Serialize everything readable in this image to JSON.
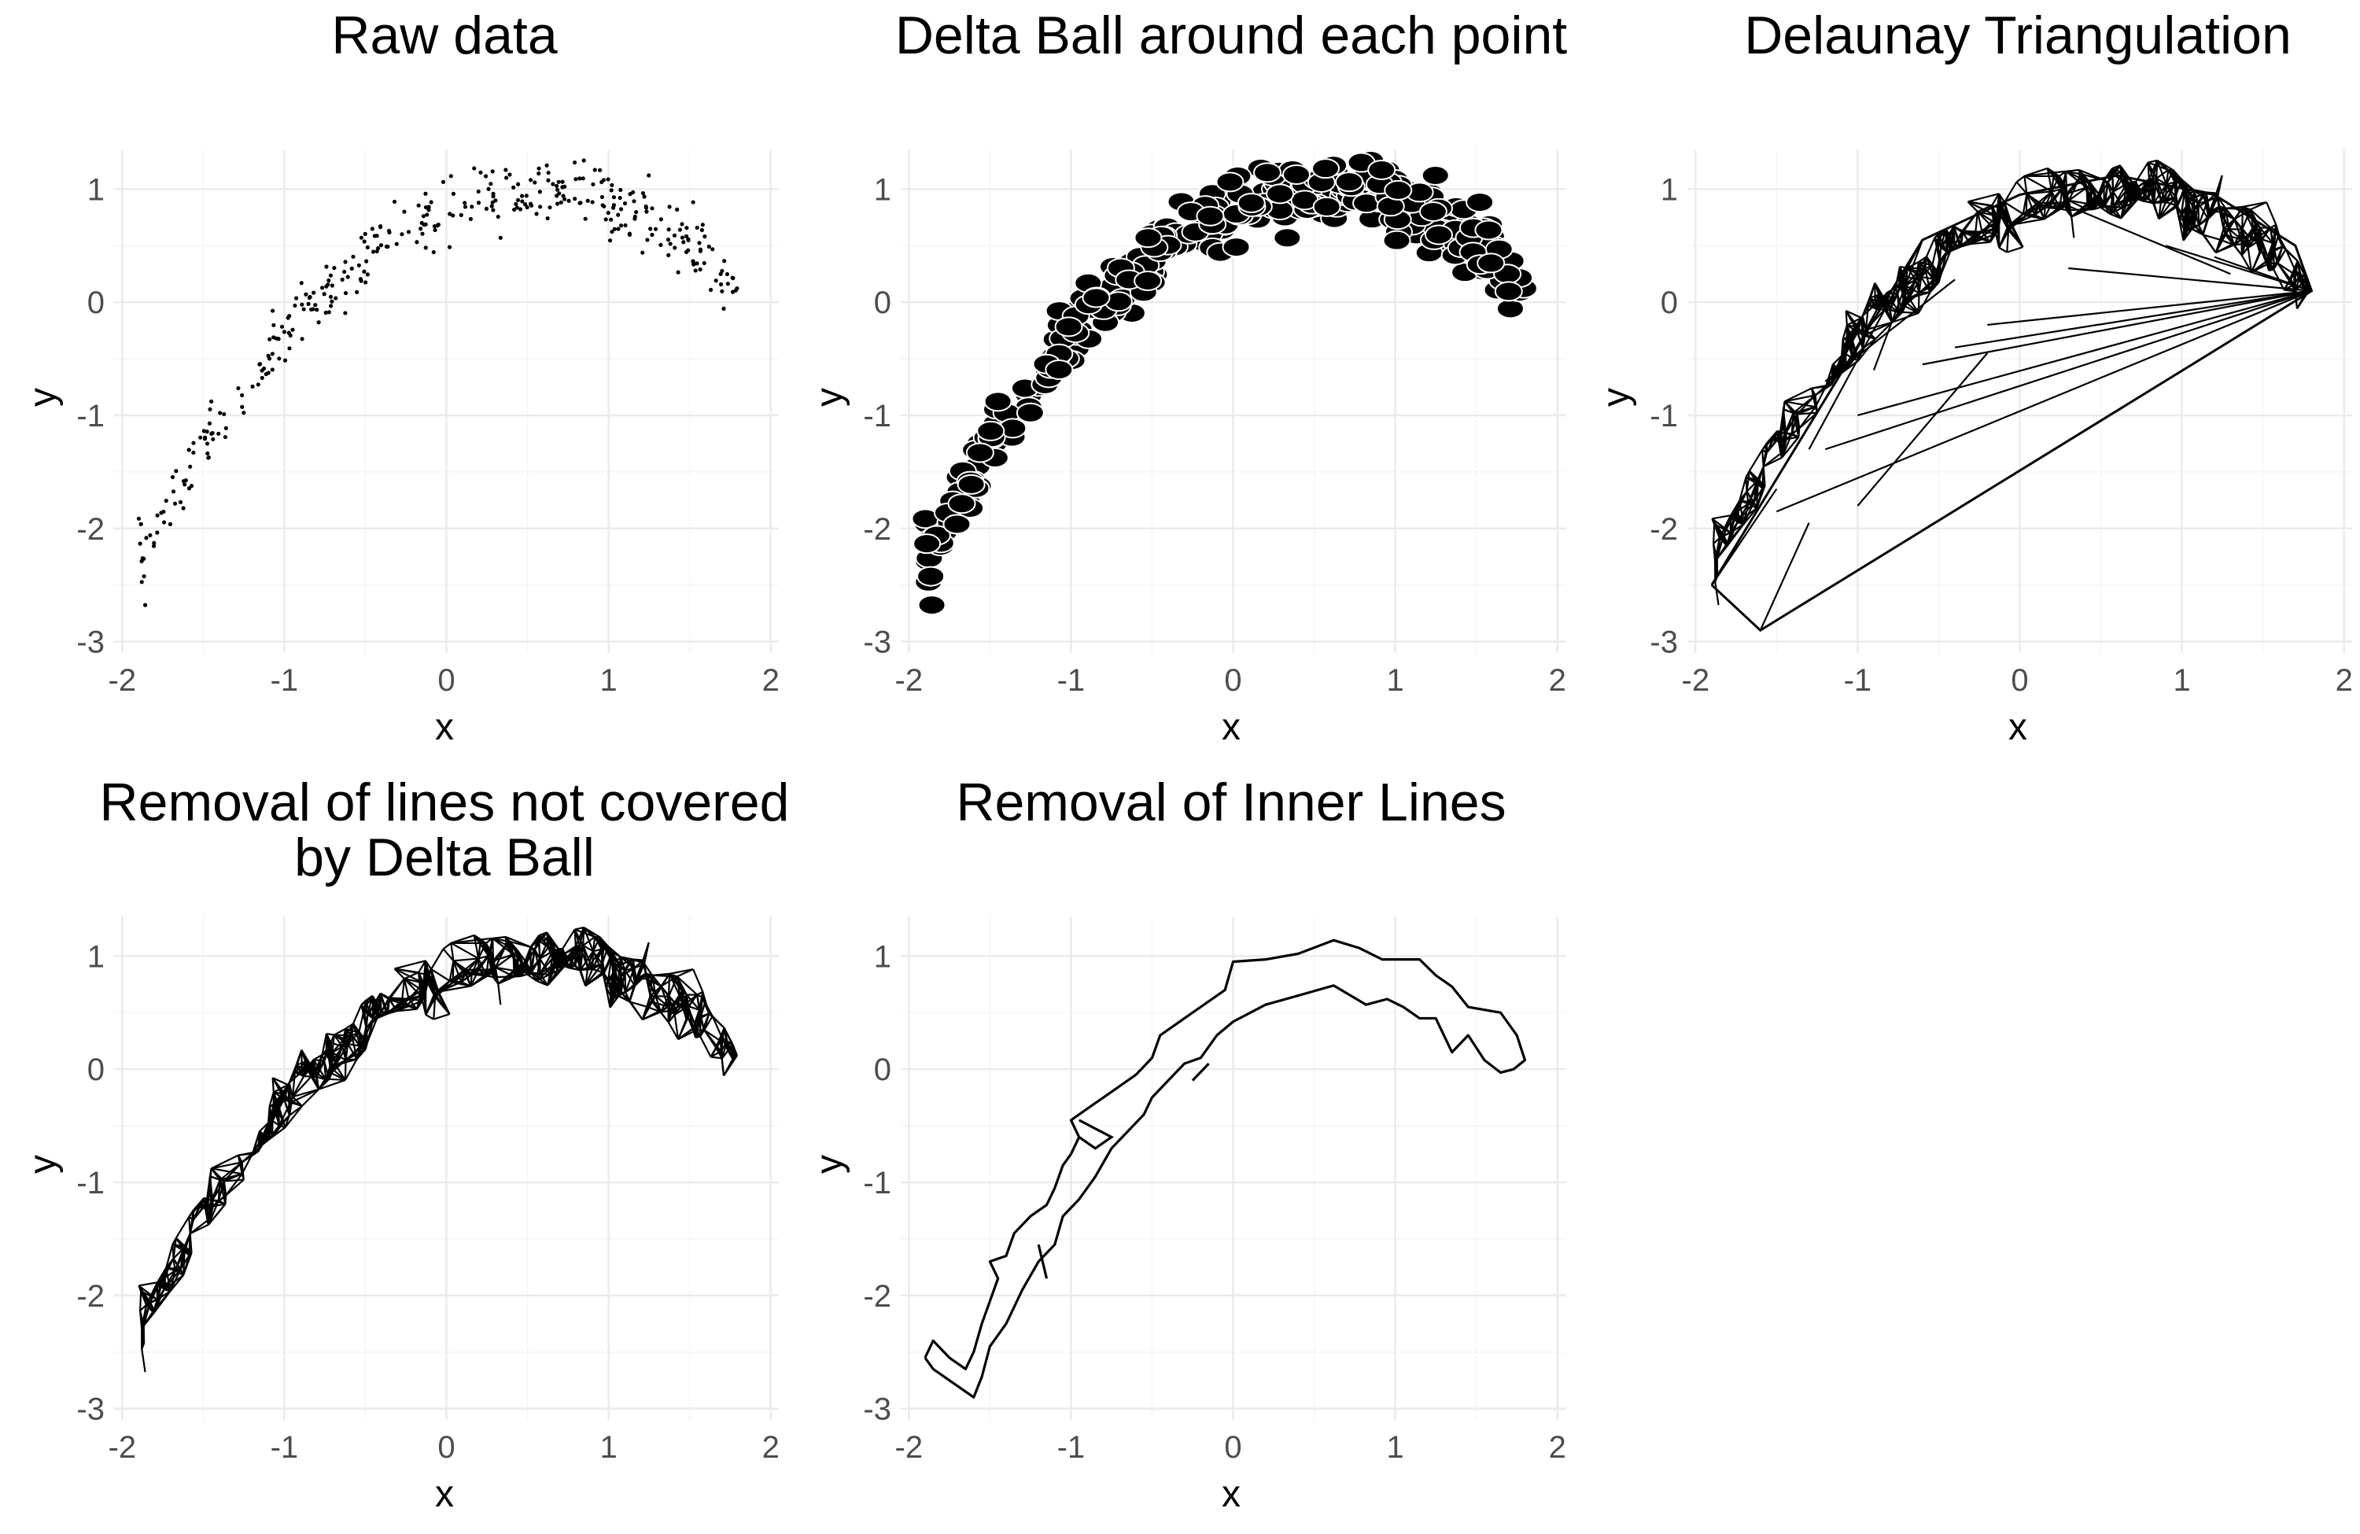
{
  "chart_data": [
    {
      "type": "scatter",
      "title": "Raw data",
      "xlabel": "x",
      "ylabel": "y",
      "xlim": [
        -2,
        2
      ],
      "ylim": [
        -3,
        1
      ],
      "x_ticks": [
        "-2",
        "-1",
        "0",
        "1",
        "2"
      ],
      "y_ticks": [
        "-3",
        "-2",
        "-1",
        "0",
        "1"
      ],
      "grid": true,
      "marker": "small dot"
    },
    {
      "type": "scatter",
      "title": "Delta Ball around each point",
      "xlabel": "x",
      "ylabel": "y",
      "xlim": [
        -2,
        2
      ],
      "ylim": [
        -3,
        1
      ],
      "x_ticks": [
        "-2",
        "-1",
        "0",
        "1",
        "2"
      ],
      "y_ticks": [
        "-3",
        "-2",
        "-1",
        "0",
        "1"
      ],
      "grid": true,
      "marker": "filled ellipse with white outline"
    },
    {
      "type": "line",
      "title": "Delaunay Triangulation",
      "xlabel": "x",
      "ylabel": "y",
      "xlim": [
        -2,
        2
      ],
      "ylim": [
        -3,
        1
      ],
      "x_ticks": [
        "-2",
        "-1",
        "0",
        "1",
        "2"
      ],
      "y_ticks": [
        "-3",
        "-2",
        "-1",
        "0",
        "1"
      ],
      "grid": true
    },
    {
      "type": "line",
      "title": "Removal of lines not covered by Delta Ball",
      "title_lines": [
        "Removal of lines not covered",
        "by Delta Ball"
      ],
      "xlabel": "x",
      "ylabel": "y",
      "xlim": [
        -2,
        2
      ],
      "ylim": [
        -3,
        1
      ],
      "x_ticks": [
        "-2",
        "-1",
        "0",
        "1",
        "2"
      ],
      "y_ticks": [
        "-3",
        "-2",
        "-1",
        "0",
        "1"
      ],
      "grid": true
    },
    {
      "type": "line",
      "title": "Removal of Inner Lines",
      "xlabel": "x",
      "ylabel": "y",
      "xlim": [
        -2,
        2
      ],
      "ylim": [
        -3,
        1
      ],
      "x_ticks": [
        "-2",
        "-1",
        "0",
        "1",
        "2"
      ],
      "y_ticks": [
        "-3",
        "-2",
        "-1",
        "0",
        "1"
      ],
      "grid": true,
      "outer_boundary": [
        [
          -1.9,
          -2.55
        ],
        [
          -1.85,
          -2.4
        ],
        [
          -1.75,
          -2.55
        ],
        [
          -1.65,
          -2.65
        ],
        [
          -1.6,
          -2.5
        ],
        [
          -1.55,
          -2.25
        ],
        [
          -1.5,
          -2.05
        ],
        [
          -1.45,
          -1.85
        ],
        [
          -1.5,
          -1.7
        ],
        [
          -1.4,
          -1.65
        ],
        [
          -1.35,
          -1.45
        ],
        [
          -1.25,
          -1.3
        ],
        [
          -1.15,
          -1.2
        ],
        [
          -1.1,
          -1.05
        ],
        [
          -1.05,
          -0.85
        ],
        [
          -1.0,
          -0.75
        ],
        [
          -0.95,
          -0.6
        ],
        [
          -1.0,
          -0.45
        ],
        [
          -0.9,
          -0.35
        ],
        [
          -0.75,
          -0.2
        ],
        [
          -0.6,
          -0.05
        ],
        [
          -0.5,
          0.1
        ],
        [
          -0.45,
          0.3
        ],
        [
          -0.35,
          0.4
        ],
        [
          -0.25,
          0.5
        ],
        [
          -0.15,
          0.6
        ],
        [
          -0.05,
          0.7
        ],
        [
          0.0,
          0.95
        ],
        [
          0.2,
          0.97
        ],
        [
          0.4,
          1.02
        ],
        [
          0.62,
          1.14
        ],
        [
          0.78,
          1.07
        ],
        [
          0.92,
          0.97
        ],
        [
          1.15,
          0.97
        ],
        [
          1.25,
          0.83
        ],
        [
          1.35,
          0.73
        ],
        [
          1.45,
          0.55
        ],
        [
          1.65,
          0.5
        ],
        [
          1.75,
          0.3
        ],
        [
          1.8,
          0.08
        ],
        [
          1.73,
          0.0
        ],
        [
          1.65,
          -0.03
        ],
        [
          1.55,
          0.08
        ],
        [
          1.45,
          0.3
        ],
        [
          1.35,
          0.15
        ],
        [
          1.25,
          0.45
        ],
        [
          1.15,
          0.45
        ],
        [
          1.05,
          0.55
        ],
        [
          0.95,
          0.62
        ],
        [
          0.82,
          0.57
        ],
        [
          0.62,
          0.74
        ],
        [
          0.4,
          0.65
        ],
        [
          0.2,
          0.57
        ],
        [
          0.0,
          0.42
        ],
        [
          -0.1,
          0.3
        ],
        [
          -0.2,
          0.1
        ],
        [
          -0.3,
          0.05
        ],
        [
          -0.4,
          -0.1
        ],
        [
          -0.5,
          -0.25
        ],
        [
          -0.55,
          -0.4
        ],
        [
          -0.65,
          -0.55
        ],
        [
          -0.75,
          -0.7
        ],
        [
          -0.85,
          -0.95
        ],
        [
          -0.95,
          -1.15
        ],
        [
          -1.05,
          -1.3
        ],
        [
          -1.1,
          -1.55
        ],
        [
          -1.2,
          -1.7
        ],
        [
          -1.3,
          -1.95
        ],
        [
          -1.4,
          -2.25
        ],
        [
          -1.5,
          -2.45
        ],
        [
          -1.55,
          -2.72
        ],
        [
          -1.6,
          -2.9
        ],
        [
          -1.75,
          -2.75
        ],
        [
          -1.85,
          -2.65
        ],
        [
          -1.9,
          -2.55
        ]
      ],
      "inner_segments": [
        [
          [
            -0.25,
            -0.1
          ],
          [
            -0.15,
            0.05
          ]
        ],
        [
          [
            -0.95,
            -0.45
          ],
          [
            -0.75,
            -0.6
          ],
          [
            -0.85,
            -0.7
          ],
          [
            -0.95,
            -0.6
          ]
        ],
        [
          [
            -1.2,
            -1.55
          ],
          [
            -1.15,
            -1.85
          ]
        ]
      ]
    }
  ]
}
